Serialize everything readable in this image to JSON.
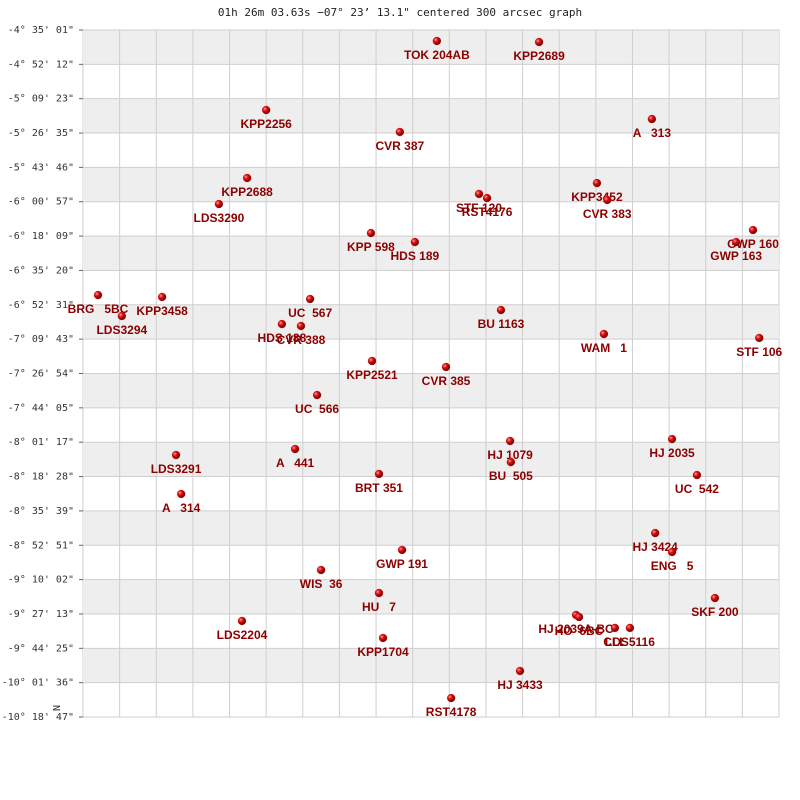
{
  "chart_data": {
    "type": "scatter",
    "title": "01h 26m 03.63s −07° 23’ 13.1\" centered 300 arcsec graph",
    "ylabel": "N",
    "color": "#cc0000",
    "label_color": "#8b0000",
    "grid": true,
    "bands": true,
    "xlim": [
      0,
      19
    ],
    "xticks": [
      1,
      2,
      3,
      4,
      5,
      6,
      7,
      8,
      9,
      10,
      11,
      12,
      13,
      14,
      15,
      16,
      17,
      18
    ],
    "ylim": [
      -10.31306,
      -4.58361
    ],
    "yticks": [
      {
        "value": -4.58361,
        "label": "-4° 35' 01\""
      },
      {
        "value": -4.87,
        "label": "-4° 52' 12\""
      },
      {
        "value": -5.15639,
        "label": "-5° 09' 23\""
      },
      {
        "value": -5.44306,
        "label": "-5° 26' 35\""
      },
      {
        "value": -5.72944,
        "label": "-5° 43' 46\""
      },
      {
        "value": -6.01583,
        "label": "-6° 00' 57\""
      },
      {
        "value": -6.3025,
        "label": "-6° 18' 09\""
      },
      {
        "value": -6.58889,
        "label": "-6° 35' 20\""
      },
      {
        "value": -6.87528,
        "label": "-6° 52' 31\""
      },
      {
        "value": -7.16194,
        "label": "-7° 09' 43\""
      },
      {
        "value": -7.44833,
        "label": "-7° 26' 54\""
      },
      {
        "value": -7.73472,
        "label": "-7° 44' 05\""
      },
      {
        "value": -8.02139,
        "label": "-8° 01' 17\""
      },
      {
        "value": -8.30778,
        "label": "-8° 18' 28\""
      },
      {
        "value": -8.59417,
        "label": "-8° 35' 39\""
      },
      {
        "value": -8.88083,
        "label": "-8° 52' 51\""
      },
      {
        "value": -9.16722,
        "label": "-9° 10' 02\""
      },
      {
        "value": -9.45361,
        "label": "-9° 27' 13\""
      },
      {
        "value": -9.74028,
        "label": "-9° 44' 25\""
      },
      {
        "value": -10.02667,
        "label": "-10° 01' 36\""
      },
      {
        "value": -10.31306,
        "label": "-10° 18' 47\""
      }
    ],
    "labels": [
      "TOK 204AB",
      "KPP2689",
      "KPP2256",
      "CVR 387",
      "A   313",
      "KPP2688",
      "LDS3290",
      "STF 120",
      "RST4176",
      "KPP3452",
      "CVR 383",
      "KPP 598",
      "HDS 189",
      "GWP 160",
      "GWP 163",
      "BRG   5BC",
      "LDS3294",
      "KPP3458",
      "UC  567",
      "HDS 188",
      "CVR 388",
      "BU 1163",
      "WAM   1",
      "STF 106",
      "KPP2521",
      "CVR 385",
      "UC  566",
      "A   441",
      "HJ 1079",
      "BU  505",
      "HJ 2035",
      "UC  542",
      "LDS3291",
      "A   314",
      "BRT 351",
      "HJ 3424",
      "ENG   5",
      "GWP 191",
      "WIS  36",
      "HU   7",
      "SKF 200",
      "LDS2204",
      "HJ 2039A-BC",
      "HO  6BC",
      "CLL",
      "LDS5116",
      "KPP1704",
      "HJ 3433",
      "RST4178"
    ],
    "x": [
      9.66,
      12.45,
      5.0,
      8.65,
      15.53,
      4.48,
      3.71,
      10.81,
      11.03,
      14.03,
      14.31,
      7.86,
      9.06,
      18.29,
      17.83,
      0.41,
      1.06,
      2.16,
      6.2,
      5.43,
      5.95,
      11.41,
      14.22,
      18.46,
      7.89,
      9.91,
      6.39,
      5.79,
      11.66,
      11.68,
      16.08,
      16.76,
      2.54,
      2.68,
      8.08,
      15.62,
      16.08,
      8.71,
      6.5,
      8.08,
      17.25,
      4.34,
      13.46,
      13.54,
      14.52,
      14.93,
      8.19,
      11.93,
      10.05
    ],
    "y": [
      -4.675,
      -4.684,
      -5.251,
      -5.434,
      -5.326,
      -5.818,
      -6.035,
      -5.951,
      -5.985,
      -5.86,
      -6.001,
      -6.277,
      -6.352,
      -6.252,
      -6.352,
      -6.794,
      -6.969,
      -6.81,
      -6.827,
      -7.036,
      -7.052,
      -6.919,
      -7.119,
      -7.152,
      -7.344,
      -7.394,
      -7.628,
      -8.078,
      -8.011,
      -8.187,
      -7.995,
      -8.295,
      -8.128,
      -8.453,
      -8.286,
      -8.779,
      -8.937,
      -8.92,
      -9.087,
      -9.279,
      -9.321,
      -9.512,
      -9.462,
      -9.479,
      -9.57,
      -9.57,
      -9.654,
      -9.929,
      -10.155
    ]
  }
}
